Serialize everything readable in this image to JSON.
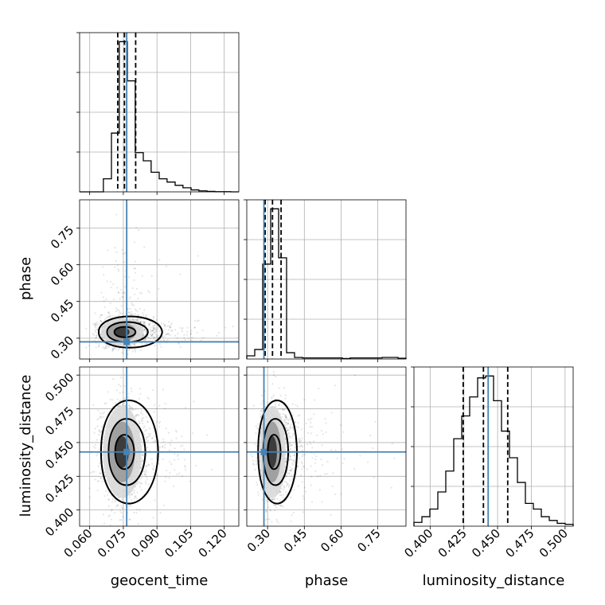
{
  "chart_data": {
    "type": "corner",
    "parameters": [
      "geocent_time",
      "phase",
      "luminosity_distance"
    ],
    "truths": {
      "geocent_time": 0.0765,
      "phase": 0.285,
      "luminosity_distance": 0.443
    },
    "ranges": {
      "geocent_time": [
        0.0555,
        0.1265
      ],
      "phase": [
        0.215,
        0.865
      ],
      "luminosity_distance": [
        0.388,
        0.506
      ]
    },
    "ticks": {
      "geocent_time": [
        "0.060",
        "0.075",
        "0.090",
        "0.105",
        "0.120"
      ],
      "phase": [
        "0.30",
        "0.45",
        "0.60",
        "0.75"
      ],
      "luminosity_distance": [
        "0.400",
        "0.425",
        "0.450",
        "0.475",
        "0.500"
      ]
    },
    "tick_values": {
      "geocent_time": [
        0.06,
        0.075,
        0.09,
        0.105,
        0.12
      ],
      "phase": [
        0.3,
        0.45,
        0.6,
        0.75
      ],
      "luminosity_distance": [
        0.4,
        0.425,
        0.45,
        0.475,
        0.5
      ]
    },
    "quantiles": {
      "geocent_time": [
        0.0725,
        0.0755,
        0.0805
      ],
      "phase": [
        0.29,
        0.32,
        0.355
      ],
      "luminosity_distance": [
        0.4245,
        0.4395,
        0.4575
      ]
    },
    "histograms": {
      "geocent_time": {
        "edges": [
          0.0555,
          0.059,
          0.0626,
          0.0661,
          0.0697,
          0.0732,
          0.0768,
          0.0803,
          0.0839,
          0.0874,
          0.091,
          0.0945,
          0.0981,
          0.1016,
          0.1052,
          0.1087,
          0.1123,
          0.1158,
          0.1194,
          0.1229,
          0.1265
        ],
        "counts": [
          0,
          0,
          0,
          8,
          36,
          92,
          68,
          24,
          19,
          12,
          8,
          6,
          4,
          2.5,
          1.2,
          0.6,
          0.3,
          0.1,
          0.1,
          0
        ]
      },
      "phase": {
        "edges": [
          0.215,
          0.2475,
          0.28,
          0.3125,
          0.345,
          0.3775,
          0.41,
          0.4425,
          0.475,
          0.5075,
          0.54,
          0.5725,
          0.605,
          0.6375,
          0.67,
          0.7025,
          0.735,
          0.7675,
          0.8,
          0.8325,
          0.865
        ],
        "counts": [
          2,
          6,
          60,
          95,
          64,
          4,
          1,
          0.7,
          0.7,
          0.7,
          0.7,
          0.7,
          0.3,
          0.7,
          0.7,
          0.7,
          0.7,
          1,
          1,
          0.5
        ]
      },
      "luminosity_distance": {
        "edges": [
          0.388,
          0.3939,
          0.3998,
          0.4057,
          0.4116,
          0.4175,
          0.4234,
          0.4293,
          0.4352,
          0.4411,
          0.447,
          0.4529,
          0.4588,
          0.4647,
          0.4706,
          0.4765,
          0.4824,
          0.4883,
          0.4942,
          0.5001,
          0.506
        ],
        "counts": [
          2,
          5,
          9,
          18,
          29,
          46,
          58,
          68,
          78,
          79,
          66,
          50,
          36,
          23,
          12,
          9,
          5,
          3,
          1.5,
          1
        ]
      }
    },
    "scatter_panels": [
      {
        "x": "geocent_time",
        "y": "phase",
        "peak": [
          0.0745,
          0.325
        ],
        "sigma": [
          0.005,
          0.03
        ],
        "tail": "right"
      },
      {
        "x": "geocent_time",
        "y": "luminosity_distance",
        "peak": [
          0.0745,
          0.443
        ],
        "sigma": [
          0.0045,
          0.018
        ],
        "tail": "right"
      },
      {
        "x": "phase",
        "y": "luminosity_distance",
        "peak": [
          0.32,
          0.443
        ],
        "sigma": [
          0.028,
          0.018
        ],
        "tail": "right"
      }
    ]
  }
}
